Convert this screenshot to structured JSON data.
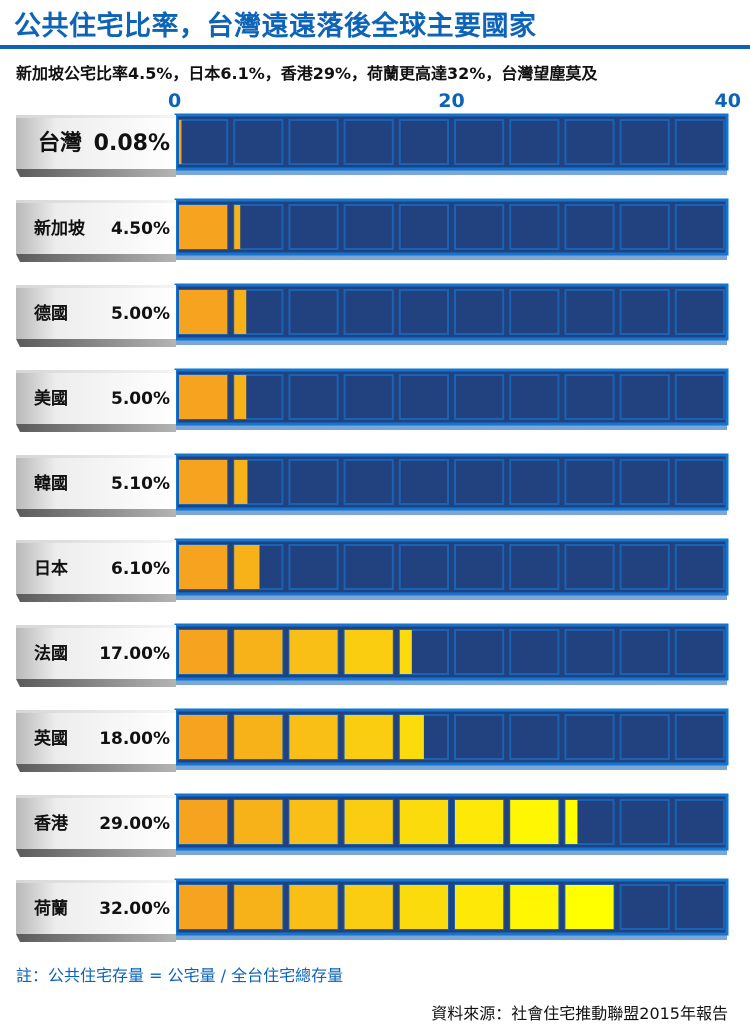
{
  "header": {
    "title": "公共住宅比率，台灣遠遠落後全球主要國家",
    "subtitle": "新加坡公宅比率4.5%，日本6.1%，香港29%，荷蘭更高達32%，台灣望塵莫及"
  },
  "footer": {
    "note": "註：公共住宅存量 = 公宅量 / 全台住宅總存量",
    "source": "資料來源：社會住宅推動聯盟2015年報告"
  },
  "colors": {
    "accent": "#0c63b8",
    "track": "#21427e",
    "track_border": "#1275d2",
    "fill_start": "#f6a41f",
    "fill_end": "#ffff00"
  },
  "chart_data": {
    "type": "bar",
    "orientation": "horizontal",
    "title": "公共住宅比率，台灣遠遠落後全球主要國家",
    "xlim": [
      0,
      40
    ],
    "xticks": [
      0,
      20,
      40
    ],
    "grid": false,
    "categories": [
      "台灣",
      "新加坡",
      "德國",
      "美國",
      "韓國",
      "日本",
      "法國",
      "英國",
      "香港",
      "荷蘭"
    ],
    "values": [
      0.08,
      4.5,
      5.0,
      5.0,
      5.1,
      6.1,
      17.0,
      18.0,
      29.0,
      32.0
    ],
    "value_labels": [
      "0.08%",
      "4.50%",
      "5.00%",
      "5.00%",
      "5.10%",
      "6.10%",
      "17.00%",
      "18.00%",
      "29.00%",
      "32.00%"
    ]
  }
}
